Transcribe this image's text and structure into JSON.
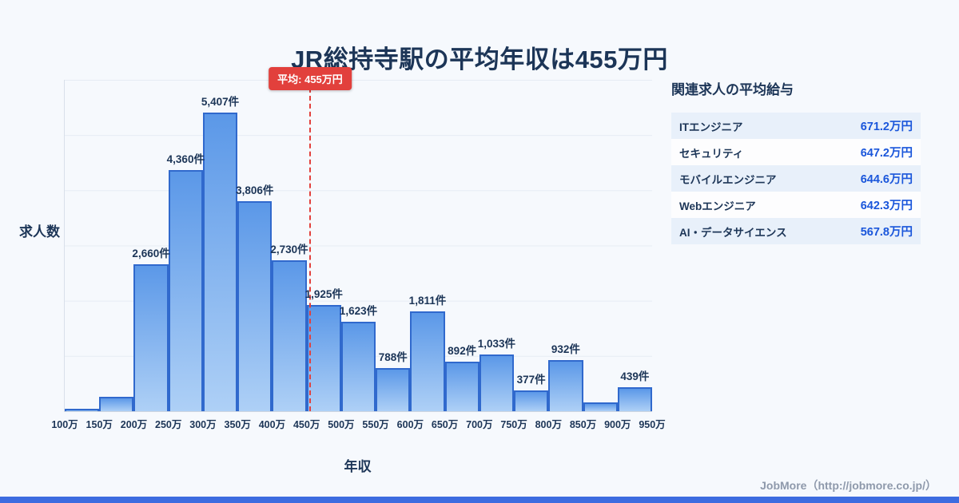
{
  "page": {
    "title": "JR総持寺駅の平均年収は455万円",
    "footer_credit": "JobMore（http://jobmore.co.jp/）"
  },
  "chart_data": {
    "type": "bar",
    "title": "JR総持寺駅の平均年収は455万円",
    "xlabel": "年収",
    "ylabel": "求人数",
    "ylim": [
      0,
      6000
    ],
    "grid": true,
    "legend": "none",
    "x_range_man_yen": [
      100,
      950
    ],
    "x_ticks": [
      "100万",
      "150万",
      "200万",
      "250万",
      "300万",
      "350万",
      "400万",
      "450万",
      "500万",
      "550万",
      "600万",
      "650万",
      "700万",
      "750万",
      "800万",
      "850万",
      "900万",
      "950万"
    ],
    "bins": [
      {
        "range": "100万-150万",
        "value": 40,
        "label": ""
      },
      {
        "range": "150万-200万",
        "value": 260,
        "label": ""
      },
      {
        "range": "200万-250万",
        "value": 2660,
        "label": "2,660件"
      },
      {
        "range": "250万-300万",
        "value": 4360,
        "label": "4,360件"
      },
      {
        "range": "300万-350万",
        "value": 5407,
        "label": "5,407件"
      },
      {
        "range": "350万-400万",
        "value": 3806,
        "label": "3,806件"
      },
      {
        "range": "400万-450万",
        "value": 2730,
        "label": "2,730件"
      },
      {
        "range": "450万-500万",
        "value": 1925,
        "label": "1,925件"
      },
      {
        "range": "500万-550万",
        "value": 1623,
        "label": "1,623件"
      },
      {
        "range": "550万-600万",
        "value": 788,
        "label": "788件"
      },
      {
        "range": "600万-650万",
        "value": 1811,
        "label": "1,811件"
      },
      {
        "range": "650万-700万",
        "value": 892,
        "label": "892件"
      },
      {
        "range": "700万-750万",
        "value": 1033,
        "label": "1,033件"
      },
      {
        "range": "750万-800万",
        "value": 377,
        "label": "377件"
      },
      {
        "range": "800万-850万",
        "value": 932,
        "label": "932件"
      },
      {
        "range": "850万-900万",
        "value": 160,
        "label": ""
      },
      {
        "range": "900万-950万",
        "value": 439,
        "label": "439件"
      }
    ],
    "average": {
      "badge": "平均: 455万円",
      "value_man_yen": 455
    },
    "colors": {
      "bar_top": "#5b98e8",
      "bar_bottom": "#aed0f6",
      "bar_border": "#3069cd",
      "average_line": "#e2403c",
      "salary_value": "#1a56db",
      "bottom_strip": "#3d6ce0"
    }
  },
  "related_jobs": {
    "title": "関連求人の平均給与",
    "rows": [
      {
        "name": "ITエンジニア",
        "salary": "671.2万円"
      },
      {
        "name": "セキュリティ",
        "salary": "647.2万円"
      },
      {
        "name": "モバイルエンジニア",
        "salary": "644.6万円"
      },
      {
        "name": "Webエンジニア",
        "salary": "642.3万円"
      },
      {
        "name": "AI・データサイエンス",
        "salary": "567.8万円"
      }
    ]
  }
}
